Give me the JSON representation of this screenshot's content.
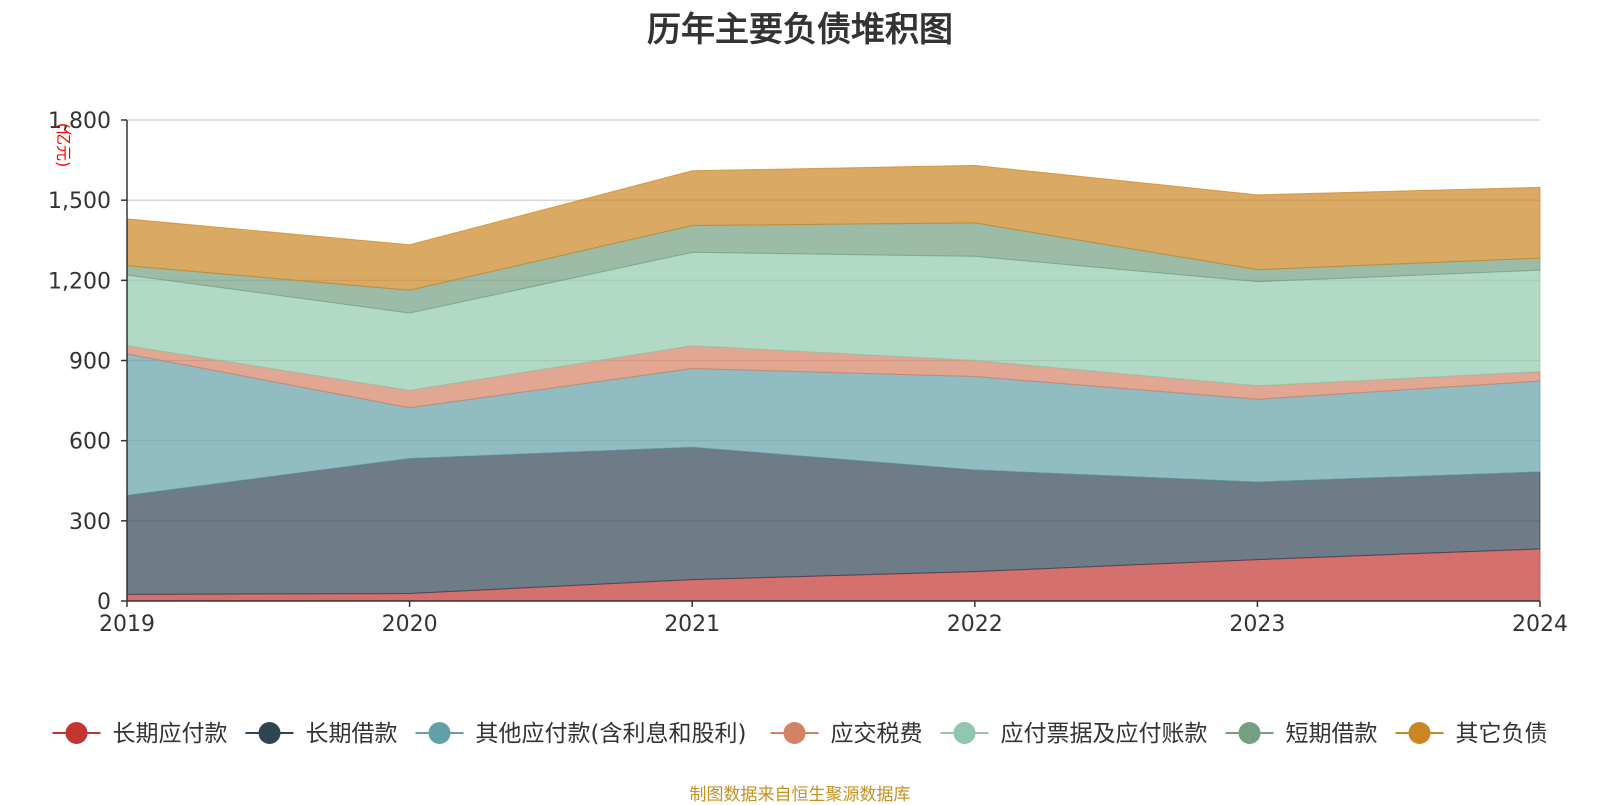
{
  "chart_data": {
    "type": "area",
    "title": "历年主要负债堆积图",
    "ylabel": "(亿元)",
    "xlabel": "",
    "x": [
      "2019",
      "2020",
      "2021",
      "2022",
      "2023",
      "2024"
    ],
    "ylim": [
      0,
      1800
    ],
    "yticks": [
      0,
      300,
      600,
      900,
      1200,
      1500,
      1800
    ],
    "ytick_labels": [
      "0",
      "300",
      "600",
      "900",
      "1,200",
      "1,500",
      "1,800"
    ],
    "grid": true,
    "legend_position": "bottom",
    "stacked": true,
    "series": [
      {
        "name": "长期应付款",
        "color": "#c23531",
        "values": [
          25,
          28,
          80,
          110,
          155,
          195
        ]
      },
      {
        "name": "长期借款",
        "color": "#2f4554",
        "values": [
          370,
          505,
          495,
          380,
          290,
          288
        ]
      },
      {
        "name": "其他应付款(含利息和股利)",
        "color": "#61a0a8",
        "values": [
          530,
          190,
          295,
          350,
          310,
          340
        ]
      },
      {
        "name": "应交税费",
        "color": "#d48265",
        "values": [
          30,
          65,
          85,
          60,
          50,
          35
        ]
      },
      {
        "name": "应付票据及应付账款",
        "color": "#91c7ae",
        "values": [
          265,
          290,
          350,
          390,
          390,
          380
        ]
      },
      {
        "name": "短期借款",
        "color": "#749f83",
        "values": [
          35,
          85,
          100,
          125,
          45,
          45
        ]
      },
      {
        "name": "其它负债",
        "color": "#ca8622",
        "values": [
          175,
          170,
          205,
          215,
          280,
          265
        ]
      }
    ],
    "source": "制图数据来自恒生聚源数据库"
  }
}
